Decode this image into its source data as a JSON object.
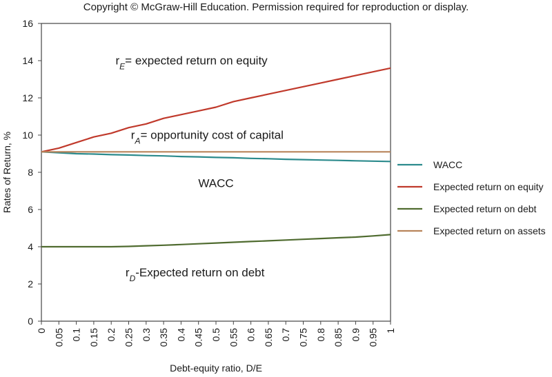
{
  "header": {
    "copyright": "Copyright © McGraw-Hill Education. Permission required for reproduction or display."
  },
  "chart_data": {
    "type": "line",
    "title": "",
    "xlabel": "Debt-equity ratio, D/E",
    "ylabel": "Rates of Return, %",
    "xlim": [
      0,
      1
    ],
    "ylim": [
      0,
      16
    ],
    "x_ticks": [
      "0",
      "0.05",
      "0.1",
      "0.15",
      "0.2",
      "0.25",
      "0.3",
      "0.35",
      "0.4",
      "0.45",
      "0.5",
      "0.55",
      "0.6",
      "0.65",
      "0.7",
      "0.75",
      "0.8",
      "0.85",
      "0.9",
      "0.95",
      "1"
    ],
    "y_ticks": [
      "0",
      "2",
      "4",
      "6",
      "8",
      "10",
      "12",
      "14",
      "16"
    ],
    "grid": false,
    "legend_position": "right",
    "series": [
      {
        "name": "WACC",
        "color": "#2b8a8c",
        "x": [
          0,
          0.05,
          0.1,
          0.15,
          0.2,
          0.25,
          0.3,
          0.35,
          0.4,
          0.45,
          0.5,
          0.55,
          0.6,
          0.65,
          0.7,
          0.75,
          0.8,
          0.85,
          0.9,
          0.95,
          1
        ],
        "y": [
          9.1,
          9.05,
          9.0,
          8.98,
          8.95,
          8.93,
          8.9,
          8.88,
          8.85,
          8.83,
          8.8,
          8.78,
          8.75,
          8.73,
          8.7,
          8.68,
          8.66,
          8.64,
          8.62,
          8.6,
          8.58
        ]
      },
      {
        "name": "Expected return on equity",
        "color": "#c0392b",
        "x": [
          0,
          0.05,
          0.1,
          0.15,
          0.2,
          0.25,
          0.3,
          0.35,
          0.4,
          0.45,
          0.5,
          0.55,
          0.6,
          0.65,
          0.7,
          0.75,
          0.8,
          0.85,
          0.9,
          0.95,
          1
        ],
        "y": [
          9.1,
          9.3,
          9.6,
          9.9,
          10.1,
          10.4,
          10.6,
          10.9,
          11.1,
          11.3,
          11.5,
          11.8,
          12.0,
          12.2,
          12.4,
          12.6,
          12.8,
          13.0,
          13.2,
          13.4,
          13.6
        ]
      },
      {
        "name": "Expected return on debt",
        "color": "#4f6b2f",
        "x": [
          0,
          0.05,
          0.1,
          0.15,
          0.2,
          0.25,
          0.3,
          0.35,
          0.4,
          0.45,
          0.5,
          0.55,
          0.6,
          0.65,
          0.7,
          0.75,
          0.8,
          0.85,
          0.9,
          0.95,
          1
        ],
        "y": [
          4.0,
          4.0,
          4.0,
          4.0,
          4.0,
          4.02,
          4.05,
          4.08,
          4.12,
          4.16,
          4.2,
          4.24,
          4.28,
          4.32,
          4.36,
          4.4,
          4.44,
          4.48,
          4.52,
          4.58,
          4.65
        ]
      },
      {
        "name": "Expected return on assets",
        "color": "#b8845a",
        "x": [
          0,
          1
        ],
        "y": [
          9.1,
          9.1
        ]
      }
    ],
    "annotations": [
      {
        "id": "re",
        "prefix": "r",
        "sub": "E",
        "text": "= expected return on equity",
        "x": 0.43,
        "y": 13.8
      },
      {
        "id": "ra",
        "prefix": "r",
        "sub": "A",
        "text": "= opportunity cost of capital",
        "x": 0.475,
        "y": 9.8
      },
      {
        "id": "wacc",
        "prefix": "",
        "sub": "",
        "text": "WACC",
        "x": 0.5,
        "y": 7.2
      },
      {
        "id": "rd",
        "prefix": "r",
        "sub": "D",
        "text": "-Expected return on debt",
        "x": 0.44,
        "y": 2.4
      }
    ]
  }
}
